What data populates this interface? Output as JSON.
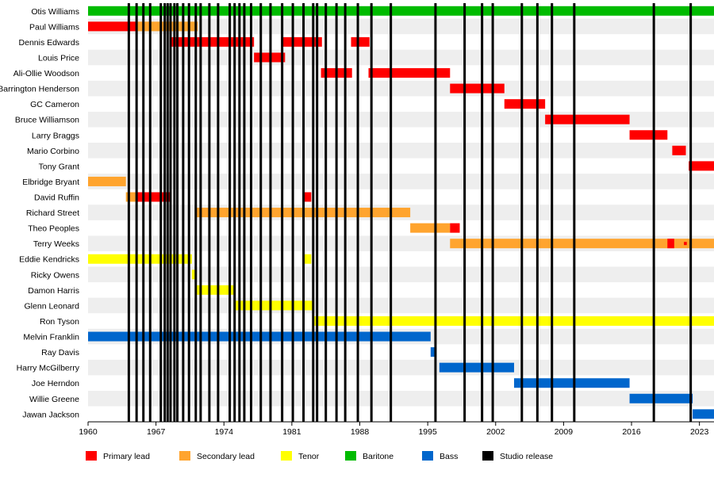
{
  "chart_data": {
    "type": "timeline",
    "xlim": [
      1960,
      2024.5
    ],
    "ticks": [
      {
        "value": 1960,
        "label": "1960"
      },
      {
        "value": 1967,
        "label": "1967"
      },
      {
        "value": 1974,
        "label": "1974"
      },
      {
        "value": 1981,
        "label": "1981"
      },
      {
        "value": 1988,
        "label": "1988"
      },
      {
        "value": 1995,
        "label": "1995"
      },
      {
        "value": 2002,
        "label": "2002"
      },
      {
        "value": 2009,
        "label": "2009"
      },
      {
        "value": 2016,
        "label": "2016"
      },
      {
        "value": 2023,
        "label": "2023"
      }
    ],
    "grid": "alternating row bands",
    "legend_position": "bottom",
    "colors": {
      "primary": "#ff0000",
      "secondary": "#ffa42e",
      "tenor": "#ffff00",
      "baritone": "#00bb00",
      "bass": "#0066cc",
      "studio": "#000000"
    },
    "legend": [
      {
        "role": "primary",
        "label": "Primary lead"
      },
      {
        "role": "secondary",
        "label": "Secondary lead"
      },
      {
        "role": "tenor",
        "label": "Tenor"
      },
      {
        "role": "baritone",
        "label": "Baritone"
      },
      {
        "role": "bass",
        "label": "Bass"
      },
      {
        "role": "studio",
        "label": "Studio release"
      }
    ],
    "studio_releases": [
      1964.2,
      1965.0,
      1965.7,
      1966.4,
      1967.5,
      1967.9,
      1968.2,
      1968.5,
      1968.9,
      1969.2,
      1969.8,
      1970.4,
      1971.1,
      1971.6,
      1972.5,
      1973.4,
      1974.6,
      1975.1,
      1975.6,
      1976.1,
      1976.8,
      1977.8,
      1978.8,
      1980.0,
      1981.1,
      1982.2,
      1983.2,
      1983.6,
      1984.5,
      1985.6,
      1986.5,
      1987.8,
      1989.2,
      1991.2,
      1995.8,
      1998.8,
      2000.6,
      2001.7,
      2004.7,
      2006.3,
      2007.8,
      2010.1,
      2018.3,
      2022.1
    ],
    "members": [
      {
        "name": "Otis Williams",
        "spans": [
          {
            "role": "baritone",
            "start": 1960.0,
            "end": 2024.5
          }
        ]
      },
      {
        "name": "Paul Williams",
        "spans": [
          {
            "role": "primary",
            "start": 1960.0,
            "end": 1965.0
          },
          {
            "role": "secondary",
            "start": 1965.0,
            "end": 1971.3
          }
        ]
      },
      {
        "name": "Dennis Edwards",
        "spans": [
          {
            "role": "primary",
            "start": 1968.4,
            "end": 1977.1
          },
          {
            "role": "primary",
            "start": 1979.9,
            "end": 1984.1
          },
          {
            "role": "primary",
            "start": 1987.1,
            "end": 1989.0
          }
        ]
      },
      {
        "name": "Louis Price",
        "spans": [
          {
            "role": "primary",
            "start": 1977.1,
            "end": 1980.3
          }
        ]
      },
      {
        "name": "Ali-Ollie Woodson",
        "spans": [
          {
            "role": "primary",
            "start": 1984.0,
            "end": 1987.2
          },
          {
            "role": "primary",
            "start": 1988.9,
            "end": 1997.3
          }
        ]
      },
      {
        "name": "Barrington Henderson",
        "spans": [
          {
            "role": "primary",
            "start": 1997.3,
            "end": 2002.9
          }
        ]
      },
      {
        "name": "GC Cameron",
        "spans": [
          {
            "role": "primary",
            "start": 2002.9,
            "end": 2007.1
          }
        ]
      },
      {
        "name": "Bruce Williamson",
        "spans": [
          {
            "role": "primary",
            "start": 2007.1,
            "end": 2015.8
          }
        ]
      },
      {
        "name": "Larry Braggs",
        "spans": [
          {
            "role": "primary",
            "start": 2015.8,
            "end": 2019.7
          }
        ]
      },
      {
        "name": "Mario Corbino",
        "spans": [
          {
            "role": "primary",
            "start": 2020.2,
            "end": 2021.6
          }
        ]
      },
      {
        "name": "Tony Grant",
        "spans": [
          {
            "role": "primary",
            "start": 2021.9,
            "end": 2024.5
          }
        ]
      },
      {
        "name": "Elbridge Bryant",
        "spans": [
          {
            "role": "secondary",
            "start": 1960.0,
            "end": 1963.9
          }
        ]
      },
      {
        "name": "David Ruffin",
        "spans": [
          {
            "role": "secondary",
            "start": 1963.9,
            "end": 1965.0
          },
          {
            "role": "primary",
            "start": 1965.0,
            "end": 1968.4
          },
          {
            "role": "primary",
            "start": 1982.2,
            "end": 1983.0
          }
        ]
      },
      {
        "name": "Richard Street",
        "spans": [
          {
            "role": "secondary",
            "start": 1971.2,
            "end": 1993.2
          }
        ]
      },
      {
        "name": "Theo Peoples",
        "spans": [
          {
            "role": "secondary",
            "start": 1993.2,
            "end": 1997.3
          },
          {
            "role": "primary",
            "start": 1997.3,
            "end": 1998.3
          }
        ]
      },
      {
        "name": "Terry Weeks",
        "spans": [
          {
            "role": "secondary",
            "start": 1997.3,
            "end": 2024.5
          },
          {
            "role": "primary",
            "start": 2019.7,
            "end": 2020.4
          },
          {
            "role": "primary",
            "start": 2021.4,
            "end": 2021.7
          }
        ]
      },
      {
        "name": "Eddie Kendricks",
        "spans": [
          {
            "role": "tenor",
            "start": 1960.0,
            "end": 1970.7
          },
          {
            "role": "tenor",
            "start": 1982.2,
            "end": 1983.0
          }
        ]
      },
      {
        "name": "Ricky Owens",
        "spans": [
          {
            "role": "tenor",
            "start": 1970.7,
            "end": 1971.2
          }
        ]
      },
      {
        "name": "Damon Harris",
        "spans": [
          {
            "role": "tenor",
            "start": 1971.2,
            "end": 1975.0
          }
        ]
      },
      {
        "name": "Glenn Leonard",
        "spans": [
          {
            "role": "tenor",
            "start": 1975.0,
            "end": 1983.3
          }
        ]
      },
      {
        "name": "Ron Tyson",
        "spans": [
          {
            "role": "tenor",
            "start": 1983.3,
            "end": 2024.5
          }
        ]
      },
      {
        "name": "Melvin Franklin",
        "spans": [
          {
            "role": "bass",
            "start": 1960.0,
            "end": 1995.3
          }
        ]
      },
      {
        "name": "Ray Davis",
        "spans": [
          {
            "role": "bass",
            "start": 1995.3,
            "end": 1995.9
          }
        ]
      },
      {
        "name": "Harry McGilberry",
        "spans": [
          {
            "role": "bass",
            "start": 1996.2,
            "end": 2003.9
          }
        ]
      },
      {
        "name": "Joe Herndon",
        "spans": [
          {
            "role": "bass",
            "start": 2003.9,
            "end": 2015.8
          }
        ]
      },
      {
        "name": "Willie Greene",
        "spans": [
          {
            "role": "bass",
            "start": 2015.8,
            "end": 2022.3
          }
        ]
      },
      {
        "name": "Jawan Jackson",
        "spans": [
          {
            "role": "bass",
            "start": 2022.3,
            "end": 2024.5
          }
        ]
      }
    ]
  }
}
